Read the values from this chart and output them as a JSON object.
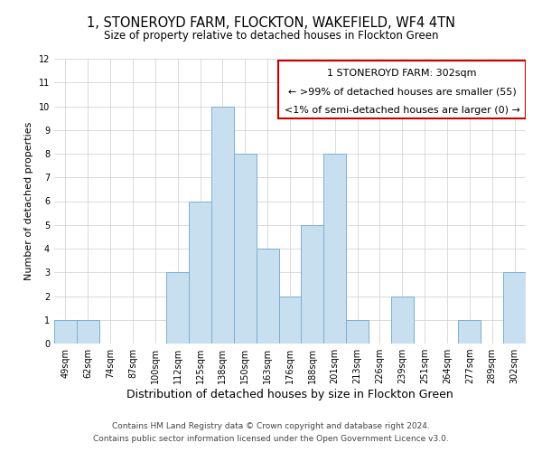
{
  "title": "1, STONEROYD FARM, FLOCKTON, WAKEFIELD, WF4 4TN",
  "subtitle": "Size of property relative to detached houses in Flockton Green",
  "xlabel": "Distribution of detached houses by size in Flockton Green",
  "ylabel": "Number of detached properties",
  "bin_labels": [
    "49sqm",
    "62sqm",
    "74sqm",
    "87sqm",
    "100sqm",
    "112sqm",
    "125sqm",
    "138sqm",
    "150sqm",
    "163sqm",
    "176sqm",
    "188sqm",
    "201sqm",
    "213sqm",
    "226sqm",
    "239sqm",
    "251sqm",
    "264sqm",
    "277sqm",
    "289sqm",
    "302sqm"
  ],
  "bar_heights": [
    1,
    1,
    0,
    0,
    0,
    3,
    6,
    10,
    8,
    4,
    2,
    5,
    8,
    1,
    0,
    2,
    0,
    0,
    1,
    0,
    3
  ],
  "bar_color": "#c8dff0",
  "bar_edge_color": "#7aafd4",
  "annotation_box_text_line1": "1 STONEROYD FARM: 302sqm",
  "annotation_box_text_line2": "← >99% of detached houses are smaller (55)",
  "annotation_box_text_line3": "<1% of semi-detached houses are larger (0) →",
  "annotation_box_edge_color": "#cc0000",
  "ylim": [
    0,
    12
  ],
  "yticks": [
    0,
    1,
    2,
    3,
    4,
    5,
    6,
    7,
    8,
    9,
    10,
    11,
    12
  ],
  "footer_line1": "Contains HM Land Registry data © Crown copyright and database right 2024.",
  "footer_line2": "Contains public sector information licensed under the Open Government Licence v3.0.",
  "background_color": "#ffffff",
  "grid_color": "#cccccc",
  "title_fontsize": 10.5,
  "subtitle_fontsize": 8.5,
  "xlabel_fontsize": 9,
  "ylabel_fontsize": 8,
  "tick_fontsize": 7,
  "annotation_fontsize": 8,
  "footer_fontsize": 6.5
}
